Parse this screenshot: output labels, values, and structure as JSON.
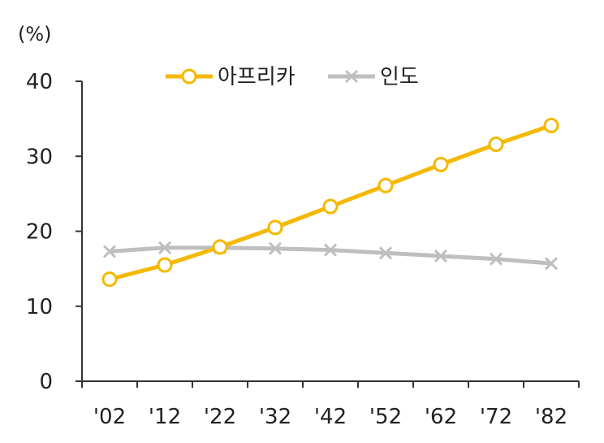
{
  "chart_data": {
    "type": "line",
    "unit_label": "(%)",
    "categories": [
      "'02",
      "'12",
      "'22",
      "'32",
      "'42",
      "'52",
      "'62",
      "'72",
      "'82"
    ],
    "y_ticks": [
      "0",
      "10",
      "20",
      "30",
      "40"
    ],
    "ylim": [
      0,
      40
    ],
    "grid": false,
    "legend_position": "top-center",
    "series": [
      {
        "name": "아프리카",
        "color": "#f5b800",
        "marker": "circle",
        "values": [
          13.6,
          15.5,
          17.9,
          20.5,
          23.3,
          26.1,
          28.9,
          31.6,
          34.1
        ]
      },
      {
        "name": "인도",
        "color": "#bfbfbf",
        "marker": "x",
        "values": [
          17.3,
          17.8,
          17.8,
          17.7,
          17.5,
          17.1,
          16.7,
          16.3,
          15.7
        ]
      }
    ]
  }
}
